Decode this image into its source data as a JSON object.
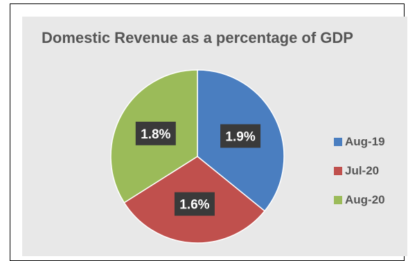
{
  "chart_data": {
    "type": "pie",
    "title": "Domestic Revenue as a percentage of GDP",
    "categories": [
      "Aug-19",
      "Jul-20",
      "Aug-20"
    ],
    "values": [
      1.9,
      1.6,
      1.8
    ],
    "data_labels": [
      "1.9%",
      "1.6%",
      "1.8%"
    ],
    "colors": [
      "#4a7ec0",
      "#c0504d",
      "#9bbb59"
    ],
    "legend_position": "right",
    "start_angle_deg": 0,
    "direction": "clockwise"
  }
}
